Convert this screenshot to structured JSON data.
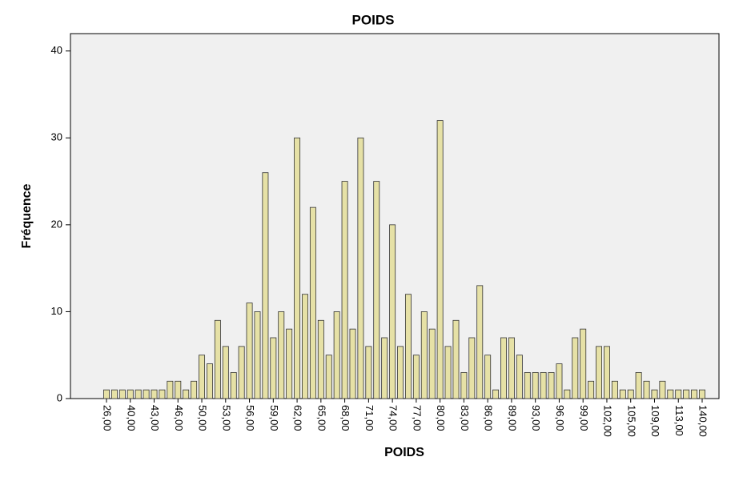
{
  "chart_data": {
    "type": "bar",
    "title": "POIDS",
    "x_label": "POIDS",
    "y_label": "Fréquence",
    "categories": [
      "26,00",
      null,
      null,
      "40,00",
      null,
      null,
      "43,00",
      null,
      null,
      "46,00",
      null,
      null,
      "50,00",
      null,
      null,
      "53,00",
      null,
      null,
      "56,00",
      null,
      null,
      "59,00",
      null,
      null,
      "62,00",
      null,
      null,
      "65,00",
      null,
      null,
      "68,00",
      null,
      null,
      "71,00",
      null,
      null,
      "74,00",
      null,
      null,
      "77,00",
      null,
      null,
      "80,00",
      null,
      null,
      "83,00",
      null,
      null,
      "86,00",
      null,
      null,
      "89,00",
      null,
      null,
      "93,00",
      null,
      null,
      "96,00",
      null,
      null,
      "99,00",
      null,
      null,
      "102,00",
      null,
      null,
      "105,00",
      null,
      null,
      "109,00",
      null,
      null,
      "113,00",
      null,
      null,
      "140,00"
    ],
    "values": [
      1,
      1,
      1,
      1,
      1,
      1,
      1,
      1,
      2,
      2,
      1,
      2,
      5,
      4,
      9,
      6,
      3,
      6,
      11,
      10,
      26,
      7,
      10,
      8,
      30,
      12,
      22,
      9,
      5,
      10,
      25,
      8,
      30,
      6,
      25,
      7,
      20,
      6,
      12,
      5,
      10,
      8,
      32,
      6,
      9,
      3,
      7,
      13,
      5,
      1,
      7,
      7,
      5,
      3,
      3,
      3,
      3,
      4,
      1,
      7,
      8,
      2,
      6,
      6,
      2,
      1,
      1,
      3,
      2,
      1,
      2,
      1,
      1,
      1,
      1,
      1
    ],
    "color": "#e6e1a6",
    "ylim": [
      0,
      42
    ],
    "yticks": [
      0,
      10,
      20,
      30,
      40
    ]
  }
}
